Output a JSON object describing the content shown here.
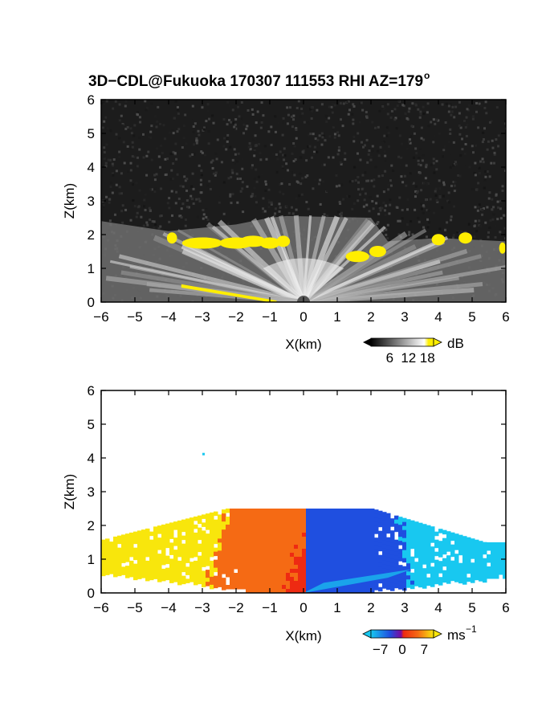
{
  "title_main": "3D−CDL@Fukuoka 170307 111553 RHI AZ=179",
  "title_deg": "o",
  "colors": {
    "noise_dark": "#1c1c1c",
    "highlight_yellow": "#ffee00",
    "wind_blue": "#1f4fe0",
    "wind_cyan": "#18c8f0",
    "wind_red": "#ee2a12",
    "wind_orange": "#f56a14",
    "wind_yellow": "#f8e60c"
  },
  "chart_data": [
    {
      "type": "heatmap",
      "panel": "backscatter",
      "xlabel": "X(km)",
      "ylabel": "Z(km)",
      "xlim": [
        -6,
        6
      ],
      "ylim": [
        0,
        6
      ],
      "x_ticks": [
        "−6",
        "−5",
        "−4",
        "−3",
        "−2",
        "−1",
        "0",
        "1",
        "2",
        "3",
        "4",
        "5",
        "6"
      ],
      "y_ticks": [
        "0",
        "1",
        "2",
        "3",
        "4",
        "5",
        "6"
      ],
      "colorbar": {
        "unit": "dB",
        "tick_labels": [
          "6",
          "12",
          "18"
        ],
        "ticks": [
          6,
          12,
          18
        ],
        "range": [
          0,
          20
        ],
        "colormap": "grayscale to yellow"
      },
      "fields": {
        "background_noise": "dark gray speckle",
        "aerosol_layer_top_km": {
          "x": [
            -6,
            -4,
            -2,
            -1,
            -0.5,
            2,
            2.5,
            4,
            6
          ],
          "z": [
            2.4,
            2.1,
            2.3,
            2.5,
            2.55,
            2.5,
            1.8,
            1.9,
            1.8
          ]
        },
        "beam_fan_origin_km": [
          0,
          0
        ]
      }
    },
    {
      "type": "heatmap",
      "panel": "radial_velocity",
      "xlabel": "X(km)",
      "ylabel": "Z(km)",
      "xlim": [
        -6,
        6
      ],
      "ylim": [
        0,
        6
      ],
      "x_ticks": [
        "−6",
        "−5",
        "−4",
        "−3",
        "−2",
        "−1",
        "0",
        "1",
        "2",
        "3",
        "4",
        "5",
        "6"
      ],
      "y_ticks": [
        "0",
        "1",
        "2",
        "3",
        "4",
        "5",
        "6"
      ],
      "colorbar": {
        "unit": "ms",
        "unit_sup": "−1",
        "tick_labels": [
          "−7",
          "0",
          "7"
        ],
        "ticks": [
          -7,
          0,
          7
        ],
        "range": [
          -10,
          10
        ],
        "colormap": "cyan-blue-red-orange-yellow"
      },
      "fields": {
        "positive_side": "x < 0 (orange/red, up to yellow at far range)",
        "negative_side": "x > 0 (blue, cyan at far range)",
        "echo_top_km": 2.5
      }
    }
  ]
}
